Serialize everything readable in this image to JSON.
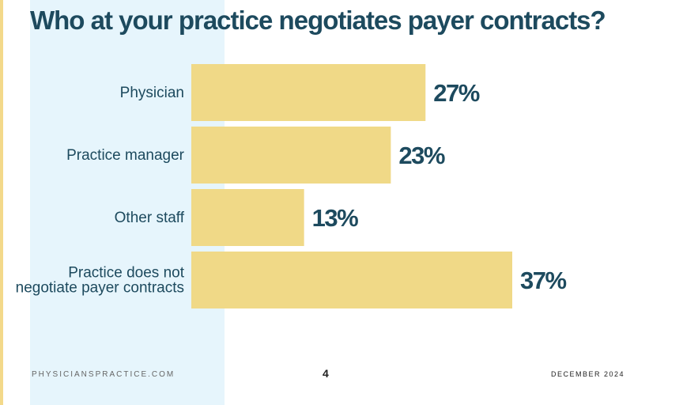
{
  "title": "Who at your practice negotiates payer contracts?",
  "footer": {
    "site": "PHYSICIANSPRACTICE.COM",
    "page_number": "4",
    "date": "DECEMBER 2024"
  },
  "colors": {
    "background": "#ffffff",
    "left_band": "#e6f5fc",
    "left_accent": "#f3d98a",
    "bar": "#f0d987",
    "title": "#1d4a5e",
    "category_label": "#1d4a5e",
    "value_label": "#1d4a5e"
  },
  "chart_data": {
    "type": "bar",
    "orientation": "horizontal",
    "title": "Who at your practice negotiates payer contracts?",
    "categories": [
      [
        "Physician"
      ],
      [
        "Practice manager"
      ],
      [
        "Other staff"
      ],
      [
        "Practice does not",
        "negotiate payer contracts"
      ]
    ],
    "values": [
      27,
      23,
      13,
      37
    ],
    "value_labels": [
      "27%",
      "23%",
      "13%",
      "37%"
    ],
    "unit": "%",
    "xlim": [
      0,
      37
    ],
    "grid": false,
    "legend": "none"
  }
}
